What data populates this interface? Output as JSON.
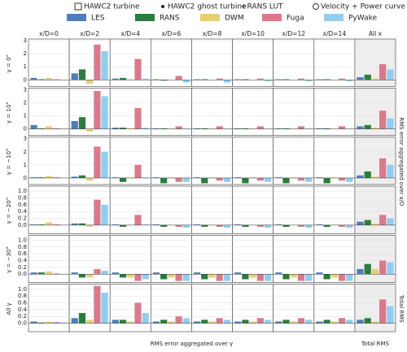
{
  "chart_data": {
    "type": "bar",
    "legend_variants": [
      "HAWC2 turbine",
      "HAWC2 ghost turbine",
      "+RANS LUT",
      "Velocity + Power curve"
    ],
    "columns": [
      "x/D=0",
      "x/D=2",
      "x/D=4",
      "x/D=6",
      "x/D=8",
      "x/D=10",
      "x/D=12",
      "x/D=14",
      "All x"
    ],
    "rows": [
      {
        "label": "γ = 0°",
        "ylim": [
          -0.5,
          3
        ],
        "yticks": [
          0,
          1,
          2,
          3
        ]
      },
      {
        "label": "γ = 10°",
        "ylim": [
          -0.5,
          3
        ],
        "yticks": [
          0,
          1,
          2,
          3
        ]
      },
      {
        "label": "γ = −10°",
        "ylim": [
          -0.5,
          3
        ],
        "yticks": [
          0,
          1,
          2,
          3
        ]
      },
      {
        "label": "γ = −20°",
        "ylim": [
          -0.25,
          1.1
        ],
        "yticks": [
          {
            "value": 0,
            "label": "0.0"
          },
          0.2,
          0.4,
          0.6,
          0.8,
          {
            "value": 1,
            "label": "1.0"
          }
        ]
      },
      {
        "label": "γ = −30°",
        "ylim": [
          -0.25,
          1.1
        ],
        "yticks": [
          {
            "value": 0,
            "label": "0.0"
          },
          0.2,
          0.4,
          0.6,
          0.8,
          {
            "value": 1,
            "label": "1.0"
          }
        ]
      },
      {
        "label": "All γ",
        "ylim": [
          -0.25,
          1.1
        ],
        "yticks": [
          {
            "value": 0,
            "label": "0.0"
          },
          0.2,
          0.4,
          0.6,
          0.8,
          {
            "value": 1,
            "label": "1.0"
          }
        ]
      }
    ],
    "right_labels": [
      "RMS error aggregated over x/D",
      "Total RMS"
    ],
    "bottom_labels": [
      "RMS error aggregated over γ",
      "Total RMS"
    ],
    "grid": true,
    "series": [
      {
        "name": "LES",
        "color": "#4f7db8",
        "values": [
          [
            0.15,
            0.5,
            0.1,
            0.05,
            0.05,
            0.05,
            0.05,
            0.05,
            0.2
          ],
          [
            0.3,
            0.6,
            0.1,
            0.05,
            0.05,
            0.05,
            0.05,
            0.05,
            0.2
          ],
          [
            0.05,
            0.1,
            0.05,
            0.05,
            0.05,
            0.05,
            0.05,
            0.05,
            0.2
          ],
          [
            0.02,
            0.05,
            0.02,
            0.02,
            0.02,
            0.02,
            0.02,
            0.02,
            0.1
          ],
          [
            0.05,
            0.05,
            0.05,
            0.05,
            0.05,
            0.05,
            0.05,
            0.05,
            0.15
          ],
          [
            0.05,
            0.15,
            0.1,
            0.05,
            0.05,
            0.05,
            0.05,
            0.05,
            0.1
          ]
        ]
      },
      {
        "name": "RANS",
        "color": "#2a7d3c",
        "values": [
          [
            0.05,
            0.8,
            0.15,
            -0.05,
            0.05,
            0.05,
            0.05,
            0.05,
            0.4
          ],
          [
            0.05,
            0.9,
            0.1,
            0.05,
            0.05,
            0.05,
            0.05,
            0.05,
            0.3
          ],
          [
            0.05,
            0.2,
            -0.3,
            -0.4,
            -0.4,
            -0.4,
            -0.4,
            -0.4,
            0.5
          ],
          [
            0.02,
            0.05,
            -0.05,
            -0.05,
            -0.05,
            -0.05,
            -0.05,
            -0.05,
            0.15
          ],
          [
            0.05,
            -0.1,
            -0.1,
            -0.15,
            -0.15,
            -0.15,
            -0.15,
            -0.15,
            0.3
          ],
          [
            0.02,
            0.3,
            0.1,
            0.1,
            0.1,
            0.1,
            0.1,
            0.1,
            0.15
          ]
        ]
      },
      {
        "name": "DWM",
        "color": "#e6cf78",
        "values": [
          [
            0.15,
            -0.3,
            0.05,
            0.02,
            0.02,
            0.02,
            0.02,
            0.02,
            0.1
          ],
          [
            0.2,
            -0.2,
            0.05,
            0.02,
            0.02,
            0.02,
            0.02,
            0.02,
            0.1
          ],
          [
            0.15,
            -0.2,
            0.05,
            0.05,
            0.05,
            0.05,
            0.05,
            0.05,
            0.1
          ],
          [
            0.08,
            -0.05,
            0.01,
            0.01,
            0.01,
            0.01,
            0.01,
            0.01,
            0.05
          ],
          [
            0.08,
            -0.1,
            -0.1,
            -0.1,
            -0.1,
            -0.1,
            -0.1,
            -0.1,
            0.15
          ],
          [
            0.05,
            0.1,
            0.05,
            0.05,
            0.05,
            0.05,
            0.05,
            0.05,
            0.05
          ]
        ]
      },
      {
        "name": "Fuga",
        "color": "#d97a8c",
        "values": [
          [
            0.05,
            2.7,
            1.6,
            0.3,
            0.1,
            0.1,
            0.1,
            0.1,
            1.2
          ],
          [
            0.05,
            2.9,
            1.6,
            0.2,
            0.2,
            0.2,
            0.2,
            0.2,
            1.4
          ],
          [
            0.05,
            2.4,
            1.0,
            -0.3,
            -0.2,
            -0.2,
            -0.2,
            -0.2,
            1.5
          ],
          [
            0.02,
            0.75,
            0.3,
            -0.05,
            -0.05,
            -0.05,
            -0.05,
            -0.05,
            0.3
          ],
          [
            0.02,
            0.15,
            -0.2,
            -0.2,
            -0.2,
            -0.2,
            -0.2,
            -0.2,
            0.4
          ],
          [
            0.03,
            1.1,
            0.6,
            0.2,
            0.15,
            0.15,
            0.15,
            0.15,
            0.7
          ]
        ]
      },
      {
        "name": "PyWake",
        "color": "#92cdf0",
        "values": [
          [
            0.02,
            2.2,
            0.1,
            -0.2,
            -0.2,
            -0.1,
            -0.1,
            -0.1,
            0.8
          ],
          [
            0.02,
            2.5,
            0.1,
            0.02,
            0.02,
            0.02,
            0.02,
            0.02,
            0.8
          ],
          [
            0.02,
            2.0,
            0.05,
            -0.3,
            -0.3,
            -0.3,
            -0.3,
            -0.3,
            1.0
          ],
          [
            0.01,
            0.6,
            0.02,
            -0.08,
            -0.08,
            -0.08,
            -0.08,
            -0.08,
            0.2
          ],
          [
            0.01,
            0.1,
            -0.15,
            -0.2,
            -0.2,
            -0.2,
            -0.2,
            -0.2,
            0.35
          ],
          [
            0.02,
            0.9,
            0.3,
            0.15,
            0.1,
            0.1,
            0.1,
            0.1,
            0.5
          ]
        ]
      }
    ]
  }
}
